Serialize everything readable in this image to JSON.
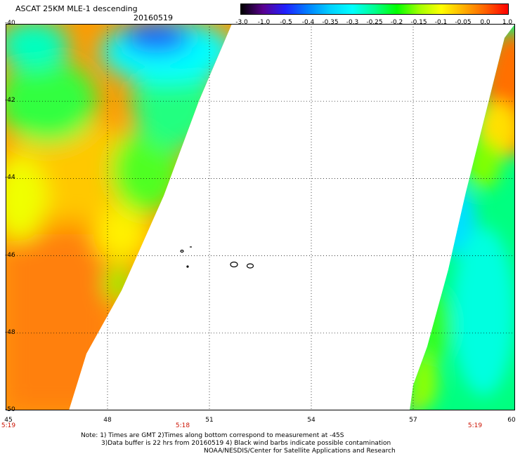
{
  "header": {
    "title": "ASCAT 25KM MLE-1 descending",
    "date": "20160519"
  },
  "colorbar": {
    "labels": [
      "-3.0",
      "-1.0",
      "-0.5",
      "-0.4",
      "-0.35",
      "-0.3",
      "-0.25",
      "-0.2",
      "-0.15",
      "-0.1",
      "-0.05",
      "0.0",
      "1.0"
    ],
    "colors": [
      "#000000",
      "#5a0090",
      "#2020ff",
      "#0080ff",
      "#00d0ff",
      "#00ffff",
      "#00ff90",
      "#00ff00",
      "#a0ff00",
      "#ffff00",
      "#ffb000",
      "#ff6000",
      "#ff0000"
    ]
  },
  "map": {
    "lat_labels": [
      "-40",
      "-42",
      "-44",
      "-46",
      "-48",
      "-50"
    ],
    "lon_labels": [
      "45",
      "48",
      "51",
      "54",
      "57",
      "60"
    ],
    "lat_range": [
      -50,
      -40
    ],
    "lon_range": [
      45,
      60
    ],
    "time_labels": [
      "5:19",
      "5:18",
      "5:19"
    ]
  },
  "notes": {
    "line1": "Note: 1) Times are GMT 2)Times along bottom correspond to measurement at -45S",
    "line2": "3)Data buffer is 22 hrs from 20160519 4) Black wind barbs indicate possible contamination",
    "line3": "NOAA/NESDIS/Center for Satellite Applications and Research"
  }
}
